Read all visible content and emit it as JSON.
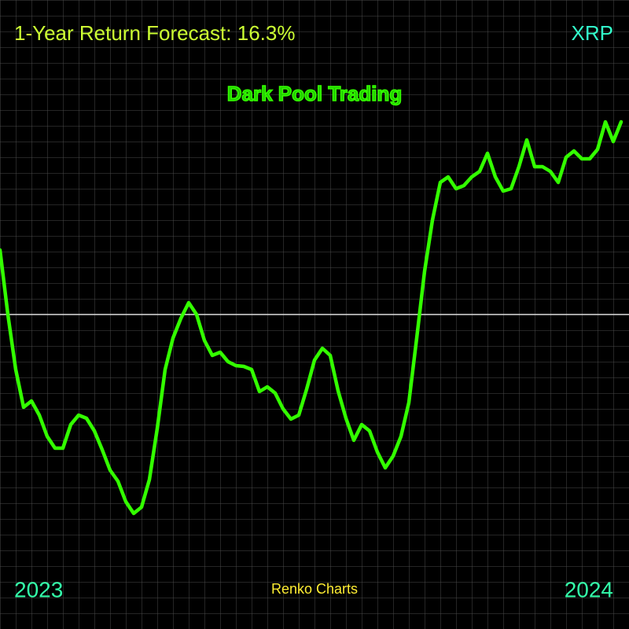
{
  "chart_data": {
    "type": "line",
    "title": "1-Year Return Forecast: 16.3%",
    "ticker": "XRP",
    "subtitle": "Dark Pool Trading",
    "footer": "Renko Charts",
    "start_label": "2023",
    "end_label": "2024",
    "color": "#33ff00",
    "ylim": [
      0,
      800
    ],
    "reference_line": 400,
    "grid": true,
    "values": [
      482,
      400,
      330,
      282,
      290,
      272,
      245,
      230,
      230,
      260,
      272,
      268,
      252,
      228,
      202,
      188,
      162,
      147,
      155,
      190,
      255,
      330,
      370,
      395,
      415,
      400,
      367,
      348,
      352,
      340,
      335,
      334,
      330,
      302,
      308,
      300,
      280,
      267,
      272,
      305,
      342,
      357,
      348,
      303,
      268,
      240,
      260,
      252,
      225,
      205,
      220,
      245,
      288,
      370,
      455,
      520,
      568,
      575,
      560,
      564,
      575,
      582,
      605,
      575,
      557,
      560,
      588,
      622,
      588,
      588,
      582,
      568,
      600,
      608,
      598,
      598,
      610,
      645,
      620,
      645
    ]
  }
}
